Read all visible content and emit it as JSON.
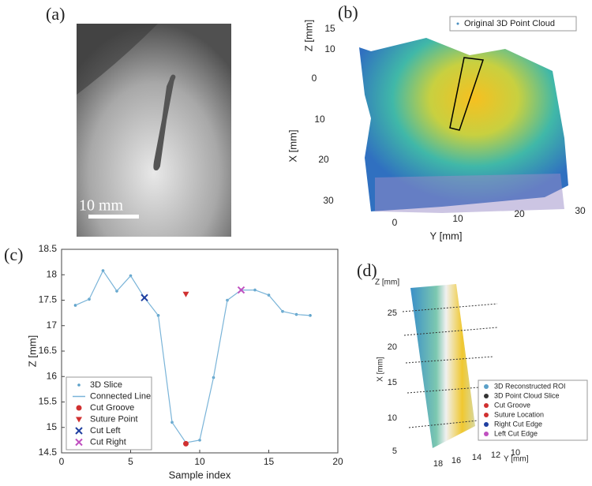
{
  "figure": {
    "a": {
      "label": "(a)",
      "scale_bar": "10 mm"
    },
    "b": {
      "label": "(b)",
      "legend": "Original 3D Point Cloud",
      "z_label": "Z [mm]",
      "x_label": "X [mm]",
      "y_label": "Y [mm]",
      "z_ticks": [
        "15",
        "10"
      ],
      "x_ticks": [
        "0",
        "10",
        "20",
        "30"
      ],
      "y_ticks": [
        "0",
        "10",
        "20",
        "30"
      ]
    },
    "d": {
      "label": "(d)",
      "z_label": "Z [mm]",
      "x_label": "X [mm]",
      "y_label": "Y [mm]",
      "x_ticks": [
        "25",
        "20",
        "15",
        "10",
        "5"
      ],
      "y_ticks": [
        "18",
        "16",
        "14",
        "12",
        "10"
      ],
      "legend": [
        "3D Reconstructed ROI",
        "3D Point Cloud Slice",
        "Cut Groove",
        "Suture Location",
        "Right Cut Edge",
        "Left Cut Edge"
      ]
    }
  },
  "chart_data": {
    "type": "line",
    "panel_label": "(c)",
    "xlabel": "Sample index",
    "ylabel": "Z [mm]",
    "xlim": [
      0,
      20
    ],
    "xticks": [
      0,
      5,
      10,
      15,
      20
    ],
    "ylim": [
      14.5,
      18.5
    ],
    "yticks": [
      14.5,
      15,
      15.5,
      16,
      16.5,
      17,
      17.5,
      18,
      18.5
    ],
    "series": [
      {
        "name": "3D Slice",
        "color": "#5aa0c8",
        "marker": "dot",
        "x": [
          1,
          2,
          3,
          4,
          5,
          6,
          7,
          8,
          9,
          10,
          11,
          12,
          13,
          14,
          15,
          16,
          17,
          18
        ],
        "values": [
          17.4,
          17.52,
          18.08,
          17.68,
          17.98,
          17.55,
          17.2,
          15.1,
          14.7,
          14.75,
          15.98,
          17.5,
          17.7,
          17.7,
          17.6,
          17.28,
          17.22,
          17.2
        ]
      },
      {
        "name": "Connected Line",
        "color": "#7ab4d8",
        "marker": "line",
        "x": [
          1,
          2,
          3,
          4,
          5,
          6,
          7,
          8,
          9,
          10,
          11,
          12,
          13,
          14,
          15,
          16,
          17,
          18
        ],
        "values": [
          17.4,
          17.52,
          18.08,
          17.68,
          17.98,
          17.55,
          17.2,
          15.1,
          14.7,
          14.75,
          15.98,
          17.5,
          17.7,
          17.7,
          17.6,
          17.28,
          17.22,
          17.2
        ]
      },
      {
        "name": "Cut Groove",
        "color": "#d03030",
        "marker": "circle",
        "x": [
          9
        ],
        "values": [
          14.68
        ]
      },
      {
        "name": "Suture Point",
        "color": "#d03030",
        "marker": "triangle",
        "x": [
          9
        ],
        "values": [
          17.62
        ]
      },
      {
        "name": "Cut Left",
        "color": "#1f3fa0",
        "marker": "x",
        "x": [
          6
        ],
        "values": [
          17.55
        ]
      },
      {
        "name": "Cut Right",
        "color": "#c050c0",
        "marker": "x",
        "x": [
          13
        ],
        "values": [
          17.7
        ]
      }
    ]
  }
}
